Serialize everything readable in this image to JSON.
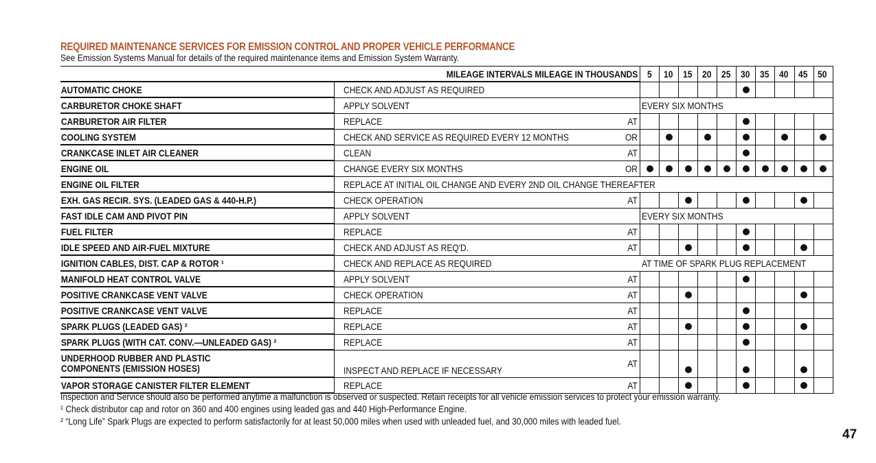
{
  "title": "REQUIRED MAINTENANCE SERVICES FOR EMISSION CONTROL AND PROPER VEHICLE PERFORMANCE",
  "subtitle": "See Emission Systems Manual for details of the required maintenance items and Emission System Warranty.",
  "table": {
    "header_label": "MILEAGE INTERVALS MILEAGE IN THOUSANDS",
    "mileage": [
      "5",
      "10",
      "15",
      "20",
      "25",
      "30",
      "35",
      "40",
      "45",
      "50"
    ],
    "rows": [
      {
        "item": "AUTOMATIC CHOKE",
        "action": "CHECK AND ADJUST AS REQUIRED",
        "suffix": "",
        "marks": [
          0,
          0,
          0,
          0,
          0,
          1,
          0,
          0,
          0,
          0
        ]
      },
      {
        "item": "CARBURETOR CHOKE SHAFT",
        "action": "APPLY SOLVENT",
        "suffix": "",
        "span": "EVERY SIX MONTHS"
      },
      {
        "item": "CARBURETOR AIR FILTER",
        "action": "REPLACE",
        "suffix": "AT",
        "marks": [
          0,
          0,
          0,
          0,
          0,
          1,
          0,
          0,
          0,
          0
        ]
      },
      {
        "item": "COOLING SYSTEM",
        "action": "CHECK AND SERVICE AS REQUIRED EVERY 12 MONTHS",
        "suffix": "OR",
        "marks": [
          0,
          1,
          0,
          1,
          0,
          1,
          0,
          1,
          0,
          1
        ]
      },
      {
        "item": "CRANKCASE INLET AIR CLEANER",
        "action": "CLEAN",
        "suffix": "AT",
        "marks": [
          0,
          0,
          0,
          0,
          0,
          1,
          0,
          0,
          0,
          0
        ]
      },
      {
        "item": "ENGINE OIL",
        "action": "CHANGE EVERY SIX MONTHS",
        "suffix": "OR",
        "marks": [
          1,
          1,
          1,
          1,
          1,
          1,
          1,
          1,
          1,
          1
        ]
      },
      {
        "item": "ENGINE OIL FILTER",
        "action": "REPLACE AT INITIAL OIL CHANGE AND EVERY 2ND OIL CHANGE THEREAFTER",
        "suffix": "",
        "full": true
      },
      {
        "item": "EXH. GAS RECIR. SYS. (LEADED GAS & 440-H.P.)",
        "action": "CHECK OPERATION",
        "suffix": "AT",
        "marks": [
          0,
          0,
          1,
          0,
          0,
          1,
          0,
          0,
          1,
          0
        ]
      },
      {
        "item": "FAST IDLE CAM AND PIVOT PIN",
        "action": "APPLY SOLVENT",
        "suffix": "",
        "span": "EVERY SIX MONTHS"
      },
      {
        "item": "FUEL FILTER",
        "action": "REPLACE",
        "suffix": "AT",
        "marks": [
          0,
          0,
          0,
          0,
          0,
          1,
          0,
          0,
          0,
          0
        ]
      },
      {
        "item": "IDLE SPEED AND AIR-FUEL MIXTURE",
        "action": "CHECK AND ADJUST AS REQ'D.",
        "suffix": "AT",
        "marks": [
          0,
          0,
          1,
          0,
          0,
          1,
          0,
          0,
          1,
          0
        ]
      },
      {
        "item": "IGNITION CABLES, DIST. CAP & ROTOR ¹",
        "action": "CHECK AND REPLACE AS REQUIRED",
        "suffix": "",
        "span": "AT TIME OF SPARK PLUG REPLACEMENT"
      },
      {
        "item": "MANIFOLD HEAT CONTROL VALVE",
        "action": "APPLY SOLVENT",
        "suffix": "AT",
        "marks": [
          0,
          0,
          0,
          0,
          0,
          1,
          0,
          0,
          0,
          0
        ]
      },
      {
        "item": "POSITIVE CRANKCASE VENT VALVE",
        "action": "CHECK OPERATION",
        "suffix": "AT",
        "marks": [
          0,
          0,
          1,
          0,
          0,
          0,
          0,
          0,
          1,
          0
        ]
      },
      {
        "item": "POSITIVE CRANKCASE VENT VALVE",
        "action": "REPLACE",
        "suffix": "AT",
        "marks": [
          0,
          0,
          0,
          0,
          0,
          1,
          0,
          0,
          0,
          0
        ]
      },
      {
        "item": "SPARK PLUGS (LEADED GAS) ²",
        "action": "REPLACE",
        "suffix": "AT",
        "marks": [
          0,
          0,
          1,
          0,
          0,
          1,
          0,
          0,
          1,
          0
        ]
      },
      {
        "item": "SPARK PLUGS (WITH CAT. CONV.—UNLEADED GAS) ²",
        "action": "REPLACE",
        "suffix": "AT",
        "marks": [
          0,
          0,
          0,
          0,
          0,
          1,
          0,
          0,
          0,
          0
        ]
      },
      {
        "item": "UNDERHOOD RUBBER AND PLASTIC",
        "item2": "COMPONENTS (EMISSION HOSES)",
        "action": "INSPECT AND REPLACE IF NECESSARY",
        "suffix": "AT",
        "marks": [
          0,
          0,
          1,
          0,
          0,
          1,
          0,
          0,
          1,
          0
        ]
      },
      {
        "item": "VAPOR STORAGE CANISTER FILTER ELEMENT",
        "action": "REPLACE",
        "suffix": "AT",
        "marks": [
          0,
          0,
          1,
          0,
          0,
          1,
          0,
          0,
          1,
          0
        ]
      }
    ]
  },
  "notes": [
    "Inspection and Service should also be performed anytime a malfunction is observed or suspected. Retain receipts for all vehicle emission services to protect your emission warranty.",
    "¹ Check distributor cap and rotor on 360 and 400 engines using leaded gas and 440 High-Performance Engine.",
    "² “Long Life” Spark Plugs are expected to perform satisfactorily for at least 50,000 miles when used with unleaded fuel, and 30,000 miles with leaded fuel."
  ],
  "page_number": "47",
  "colors": {
    "title": "#b5562a",
    "text": "#111111"
  }
}
